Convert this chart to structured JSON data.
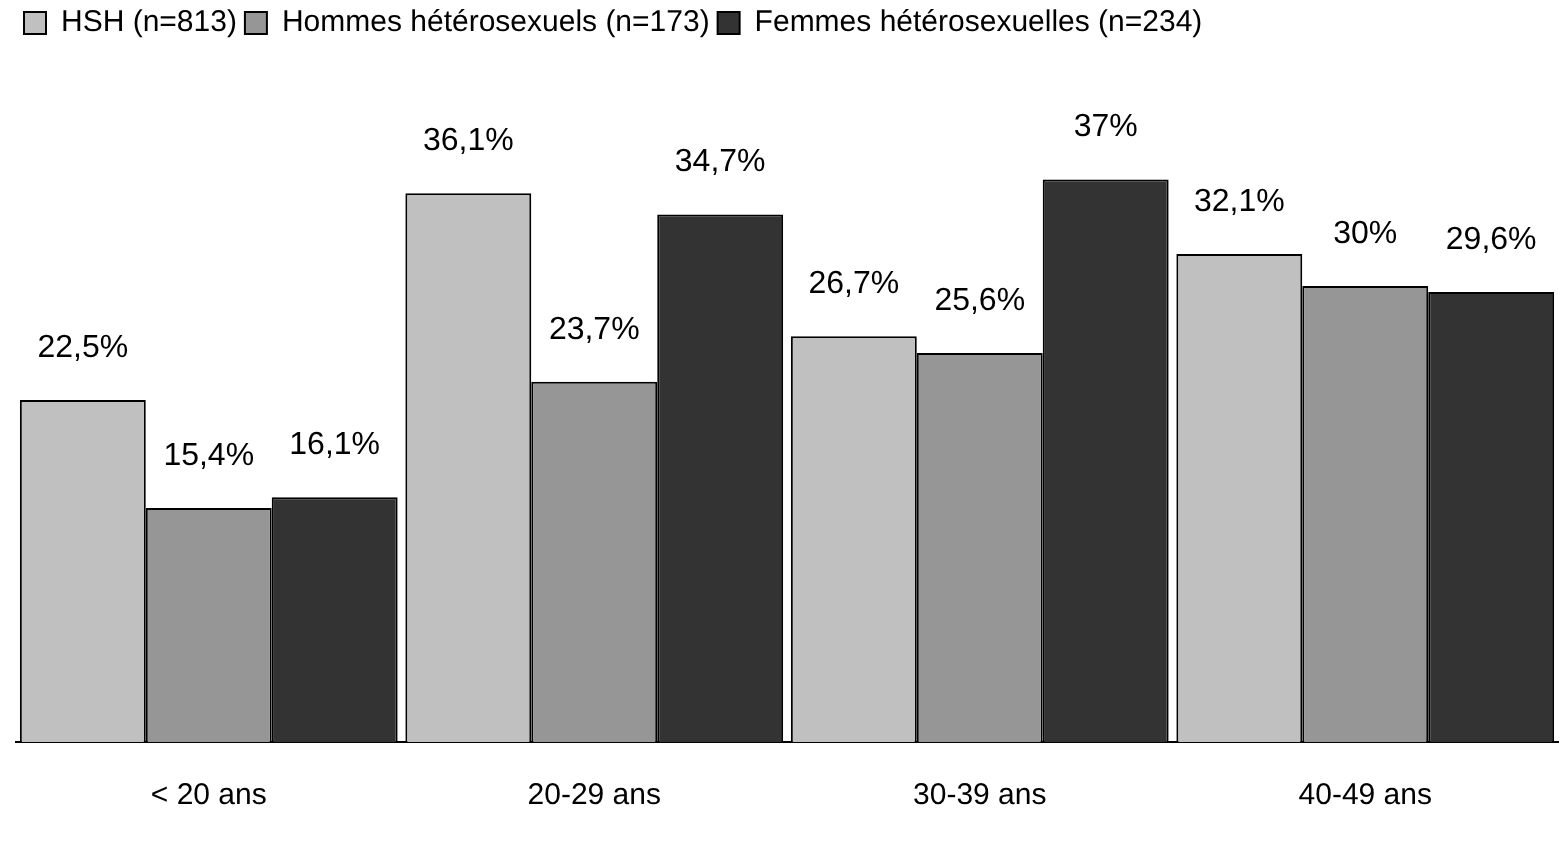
{
  "chart_data": {
    "type": "bar",
    "categories": [
      "< 20 ans",
      "20-29 ans",
      "30-39 ans",
      "40-49 ans"
    ],
    "series": [
      {
        "name": "HSH (n=813)",
        "color": "#c0c0c0",
        "values": [
          22.5,
          36.1,
          26.7,
          32.1
        ],
        "value_labels": [
          "22,5%",
          "36,1%",
          "26,7%",
          "32,1%"
        ]
      },
      {
        "name": "Hommes hétérosexuels (n=173)",
        "color": "#969696",
        "values": [
          15.4,
          23.7,
          25.6,
          30
        ],
        "value_labels": [
          "15,4%",
          "23,7%",
          "25,6%",
          "30%"
        ]
      },
      {
        "name": "Femmes hétérosexuelles (n=234)",
        "color": "#333333",
        "values": [
          16.1,
          34.7,
          37,
          29.6
        ],
        "value_labels": [
          "16,1%",
          "34,7%",
          "37%",
          "29,6%"
        ]
      }
    ],
    "legend": "top left",
    "grid": false,
    "tick_labels": "x"
  }
}
